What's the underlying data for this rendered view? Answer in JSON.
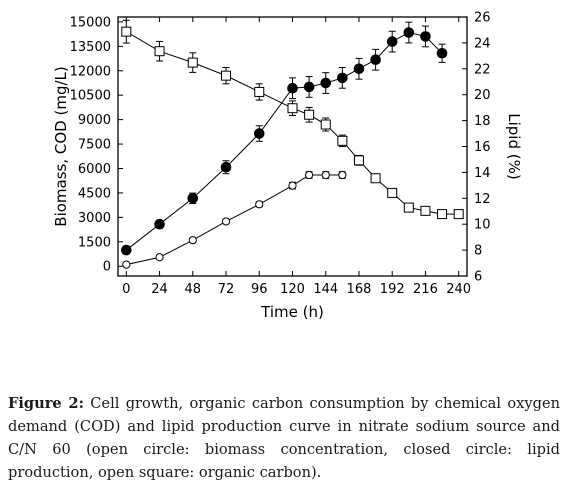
{
  "caption": {
    "label": "Figure 2:",
    "text": "Cell growth, organic carbon consumption by chemical oxygen demand (COD) and lipid production curve in nitrate sodium source and C/N 60 (open circle: biomass concentration, closed circle: lipid production, open square: organic carbon)."
  },
  "chart_data": {
    "type": "scatter",
    "title": "",
    "xlabel": "Time (h)",
    "ylabel": "Biomass, COD (mg/L)",
    "y2label": "Lipid (%)",
    "xlim": [
      -6,
      246
    ],
    "ylim": [
      -600,
      15300
    ],
    "y2lim": [
      6,
      26
    ],
    "x_ticks": [
      0,
      24,
      48,
      72,
      96,
      120,
      144,
      168,
      192,
      216,
      240
    ],
    "y_ticks": [
      0,
      1500,
      3000,
      4500,
      6000,
      7500,
      9000,
      10500,
      12000,
      13500,
      15000
    ],
    "y2_ticks": [
      6,
      8,
      10,
      12,
      14,
      16,
      18,
      20,
      22,
      24,
      26
    ],
    "grid": false,
    "series": [
      {
        "marker": "open-circle",
        "axis": "left",
        "color": "#000000",
        "x": [
          0,
          24,
          48,
          72,
          96,
          120,
          132,
          144,
          156
        ],
        "y": [
          100,
          550,
          1600,
          2750,
          3800,
          4950,
          5600,
          5600,
          5600
        ],
        "err": [
          80,
          100,
          120,
          120,
          150,
          200,
          200,
          200,
          200
        ]
      },
      {
        "marker": "filled-circle",
        "axis": "right",
        "color": "#000000",
        "x": [
          0,
          24,
          48,
          72,
          96,
          120,
          132,
          144,
          156,
          168,
          180,
          192,
          204,
          216,
          228
        ],
        "y": [
          8.0,
          10.0,
          12.0,
          14.4,
          17.0,
          20.5,
          20.6,
          20.9,
          21.3,
          22.0,
          22.7,
          24.1,
          24.8,
          24.5,
          23.2
        ],
        "err": [
          0.3,
          0.3,
          0.4,
          0.5,
          0.6,
          0.8,
          0.8,
          0.8,
          0.8,
          0.8,
          0.8,
          0.8,
          0.8,
          0.8,
          0.7
        ]
      },
      {
        "marker": "open-square",
        "axis": "left",
        "color": "#000000",
        "x": [
          0,
          24,
          48,
          72,
          96,
          120,
          132,
          144,
          156,
          168,
          180,
          192,
          204,
          216,
          228,
          240
        ],
        "y": [
          14400,
          13200,
          12500,
          11700,
          10700,
          9700,
          9300,
          8700,
          7700,
          6500,
          5400,
          4500,
          3600,
          3400,
          3200,
          3200
        ],
        "err": [
          700,
          600,
          600,
          500,
          500,
          450,
          450,
          400,
          350,
          300,
          200,
          150,
          120,
          100,
          100,
          100
        ]
      }
    ]
  }
}
